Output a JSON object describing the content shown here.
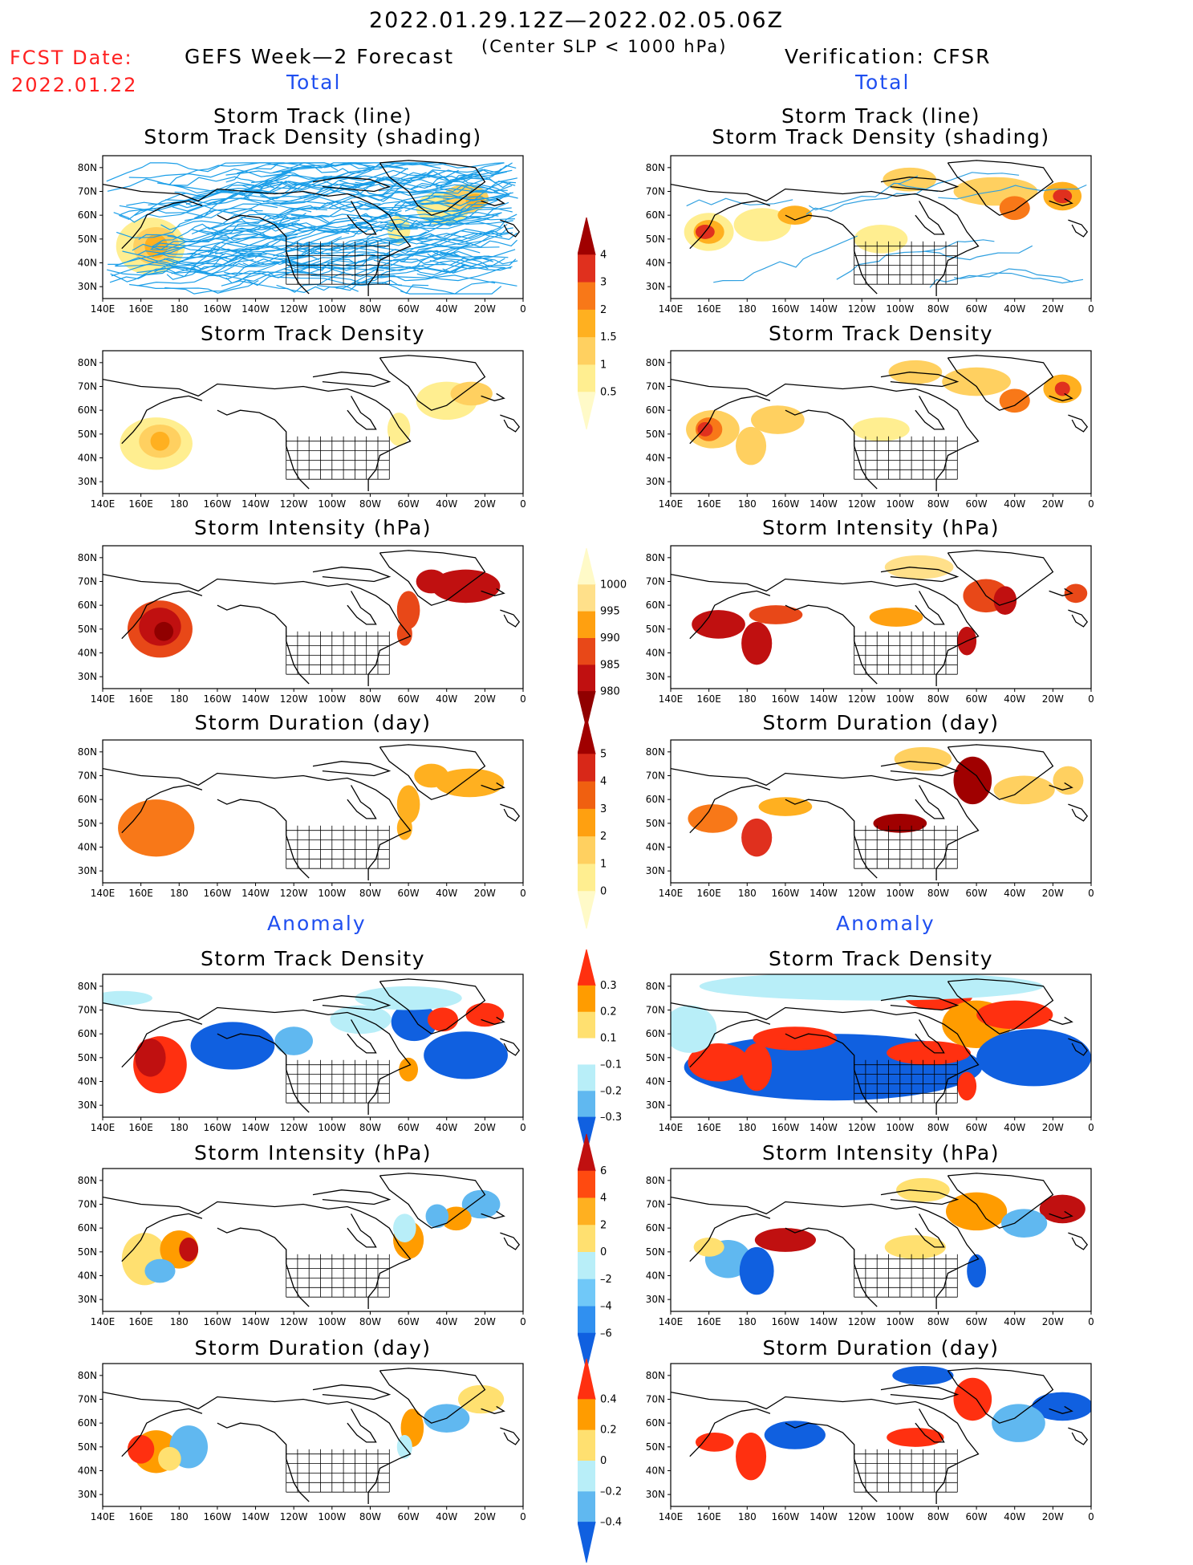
{
  "header": {
    "period": "2022.01.29.12Z—2022.02.05.06Z",
    "criterion": "(Center SLP < 1000 hPa)",
    "fcst_label": "FCST Date:",
    "fcst_date": "2022.01.22",
    "left_title": "GEFS Week—2 Forecast",
    "right_title": "Verification: CFSR",
    "total": "Total",
    "anomaly": "Anomaly"
  },
  "axes": {
    "lon_labels": [
      "140E",
      "160E",
      "180",
      "160W",
      "140W",
      "120W",
      "100W",
      "80W",
      "60W",
      "40W",
      "20W",
      "0"
    ],
    "lat_labels": [
      "80N",
      "70N",
      "60N",
      "50N",
      "40N",
      "30N"
    ]
  },
  "panels": {
    "track_line": [
      "Storm Track (line)",
      "Storm Track Density (shading)"
    ],
    "density": "Storm Track Density",
    "intensity": "Storm Intensity (hPa)",
    "duration": "Storm Duration (day)"
  },
  "colorbars": [
    {
      "id": "density",
      "labels": [
        "4",
        "3",
        "2",
        "1.5",
        "1",
        "0.5"
      ],
      "colors": [
        "#a00000",
        "#e0301e",
        "#f87818",
        "#ffb020",
        "#ffd060",
        "#ffee90",
        "#fffac8"
      ]
    },
    {
      "id": "intensity",
      "labels": [
        "1000",
        "995",
        "990",
        "985",
        "980"
      ],
      "colors": [
        "#fffac8",
        "#ffe08a",
        "#ffa010",
        "#e84818",
        "#c01010",
        "#900000"
      ]
    },
    {
      "id": "duration",
      "labels": [
        "5",
        "4",
        "3",
        "2",
        "1",
        "0"
      ],
      "colors": [
        "#a00000",
        "#d82818",
        "#f06010",
        "#ffa010",
        "#ffd060",
        "#ffee90",
        "#fffac8"
      ]
    },
    {
      "id": "anom_density",
      "labels": [
        "0.3",
        "0.2",
        "0.1",
        "–0.1",
        "–0.2",
        "–0.3"
      ],
      "colors": [
        "#ff3010",
        "#ff9c00",
        "#ffe070",
        "#ffffff",
        "#b8eef8",
        "#60b8f0",
        "#1060e0"
      ]
    },
    {
      "id": "anom_intensity",
      "labels": [
        "6",
        "4",
        "2",
        "0",
        "–2",
        "–4",
        "–6"
      ],
      "colors": [
        "#c01010",
        "#ff4a10",
        "#ffb020",
        "#ffe070",
        "#b8eef8",
        "#70c8f8",
        "#3090f0",
        "#1060e0"
      ]
    },
    {
      "id": "anom_duration",
      "labels": [
        "0.4",
        "0.2",
        "0",
        "–0.2",
        "–0.4"
      ],
      "colors": [
        "#ff3010",
        "#ff9c00",
        "#ffe070",
        "#b8eef8",
        "#60b8f0",
        "#1060e0"
      ]
    }
  ]
}
